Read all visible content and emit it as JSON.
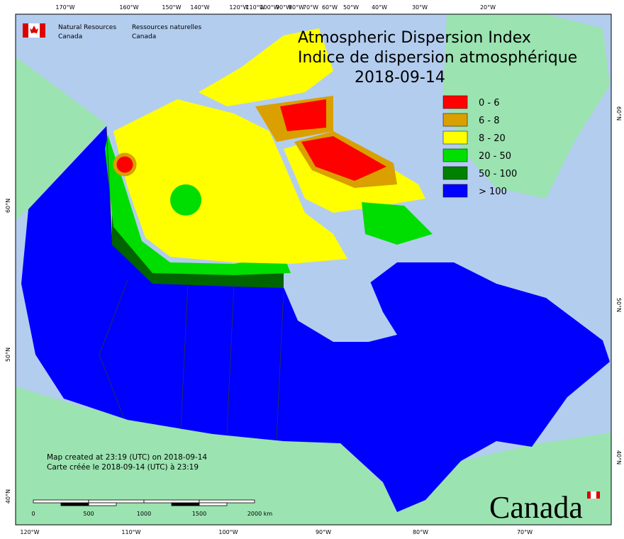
{
  "header": {
    "title": "Atmospheric Dispersion Index",
    "title_fr": "Indice de dispersion atmosphérique",
    "date": "2018-09-14",
    "agency_en": [
      "Natural Resources",
      "Canada"
    ],
    "agency_fr": [
      "Ressources naturelles",
      "Canada"
    ]
  },
  "legend": [
    {
      "label": "0 - 6",
      "color": "#ff0000"
    },
    {
      "label": "6 - 8",
      "color": "#d9a000"
    },
    {
      "label": "8 - 20",
      "color": "#ffff00"
    },
    {
      "label": "20 - 50",
      "color": "#00e000"
    },
    {
      "label": "50 - 100",
      "color": "#008000"
    },
    {
      "label": "> 100",
      "color": "#0000ff"
    }
  ],
  "graticule": {
    "top": [
      "170°W",
      "160°W",
      "150°W",
      "140°W",
      "120°W",
      "110°W",
      "100°W",
      "90°W",
      "80°W",
      "70°W",
      "60°W",
      "50°W",
      "40°W",
      "30°W",
      "20°W"
    ],
    "bottom": [
      "120°W",
      "110°W",
      "100°W",
      "90°W",
      "80°W",
      "70°W"
    ],
    "left": [
      "60°N",
      "50°N",
      "40°N"
    ],
    "right": [
      "60°N",
      "50°N",
      "40°N"
    ]
  },
  "notes": [
    "Map created at 23:19 (UTC) on 2018-09-14",
    "Carte créée le 2018-09-14 (UTC) à 23:19"
  ],
  "scale": {
    "labels": [
      "0",
      "500",
      "1000",
      "1500",
      "2000"
    ],
    "unit": "km"
  },
  "wordmark": "Canada"
}
